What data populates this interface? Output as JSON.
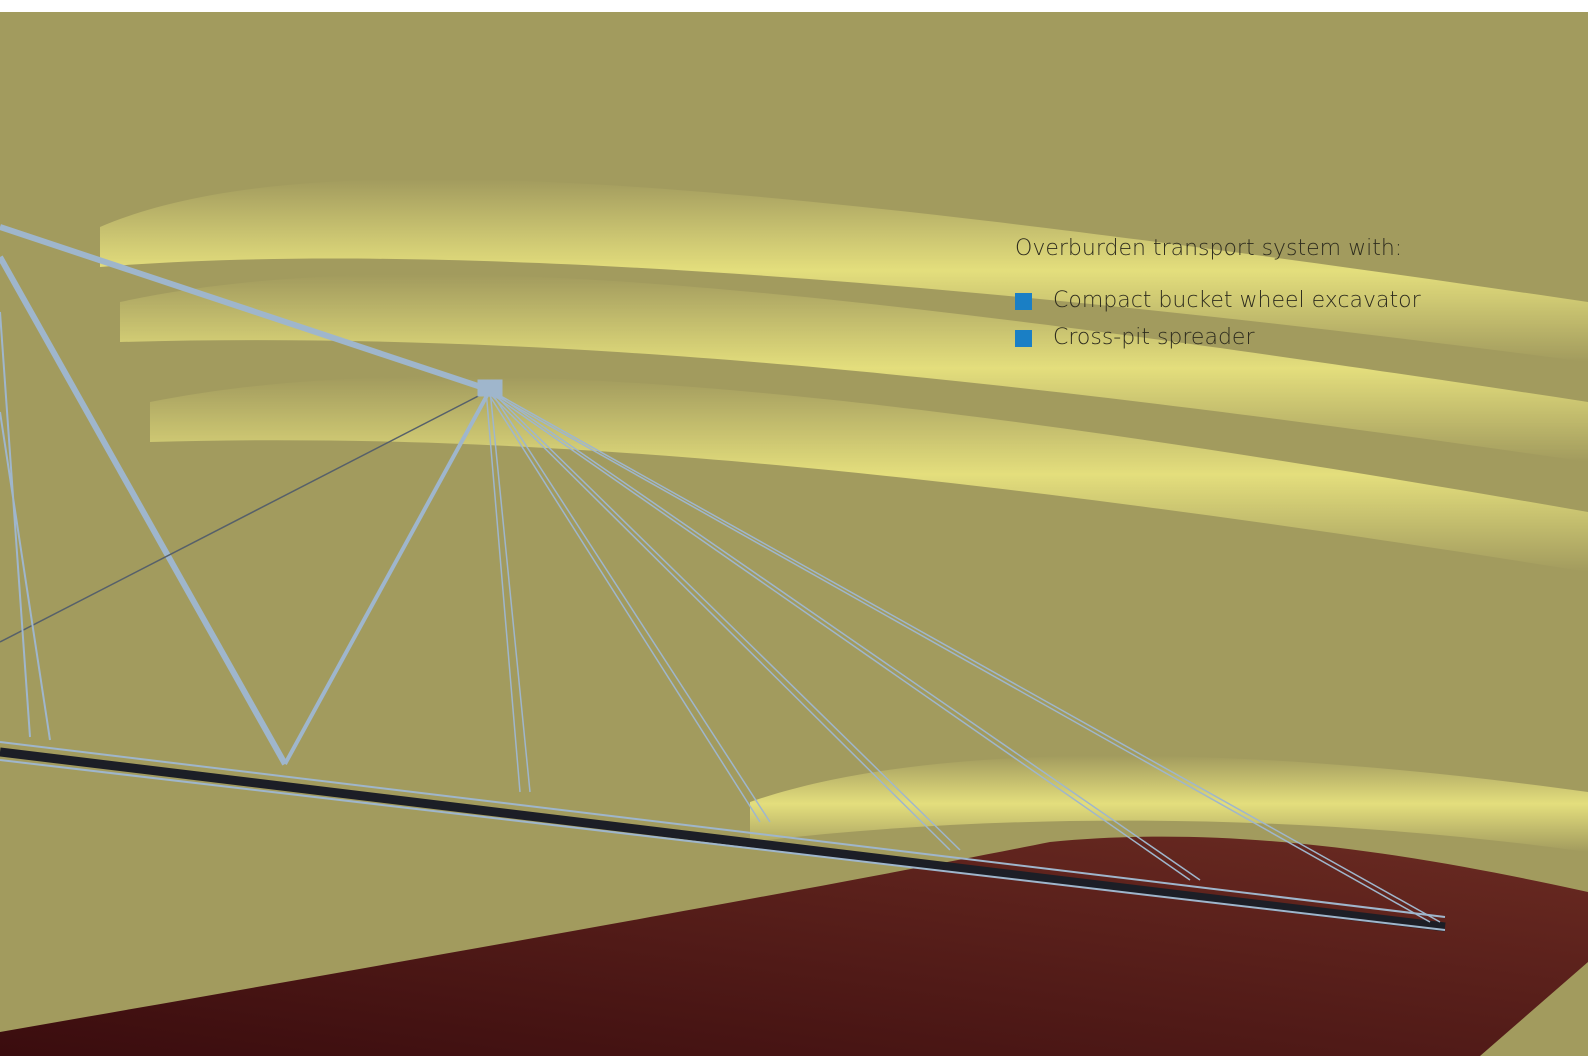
{
  "intro": "Overburden transport system with:",
  "items": [
    "Compact bucket wheel excavator",
    "Cross-pit spreader"
  ]
}
